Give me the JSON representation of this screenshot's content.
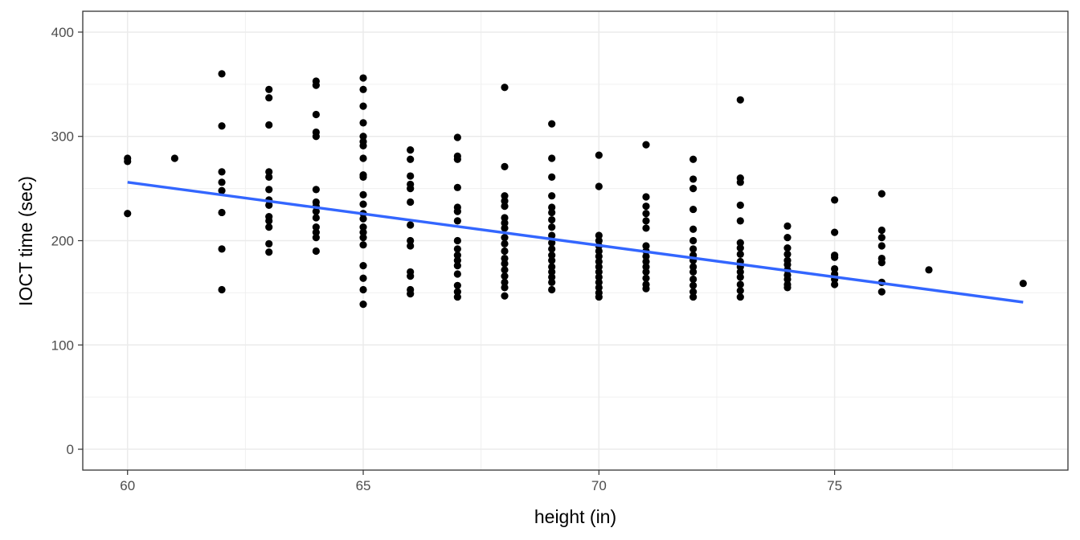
{
  "chart_data": {
    "type": "scatter",
    "title": "",
    "xlabel": "height (in)",
    "ylabel": "IOCT time (sec)",
    "xlim": [
      59.05,
      79.95
    ],
    "ylim": [
      -20,
      420
    ],
    "x_ticks": [
      60,
      65,
      70,
      75
    ],
    "x_tick_labels": [
      "60",
      "65",
      "70",
      "75"
    ],
    "y_ticks": [
      0,
      100,
      200,
      300,
      400
    ],
    "y_tick_labels": [
      "0",
      "100",
      "200",
      "300",
      "400"
    ],
    "grid": true,
    "legend": "none",
    "point_color": "#000000",
    "line_color": "#3366FF",
    "points": [
      [
        60,
        279
      ],
      [
        60,
        276
      ],
      [
        60,
        226
      ],
      [
        61,
        279
      ],
      [
        62,
        360
      ],
      [
        62,
        310
      ],
      [
        62,
        266
      ],
      [
        62,
        256
      ],
      [
        62,
        248
      ],
      [
        62,
        227
      ],
      [
        62,
        192
      ],
      [
        62,
        153
      ],
      [
        63,
        345
      ],
      [
        63,
        337
      ],
      [
        63,
        311
      ],
      [
        63,
        266
      ],
      [
        63,
        261
      ],
      [
        63,
        249
      ],
      [
        63,
        239
      ],
      [
        63,
        234
      ],
      [
        63,
        223
      ],
      [
        63,
        219
      ],
      [
        63,
        213
      ],
      [
        63,
        197
      ],
      [
        63,
        189
      ],
      [
        64,
        353
      ],
      [
        64,
        349
      ],
      [
        64,
        321
      ],
      [
        64,
        304
      ],
      [
        64,
        300
      ],
      [
        64,
        249
      ],
      [
        64,
        237
      ],
      [
        64,
        233
      ],
      [
        64,
        228
      ],
      [
        64,
        222
      ],
      [
        64,
        213
      ],
      [
        64,
        208
      ],
      [
        64,
        203
      ],
      [
        64,
        190
      ],
      [
        65,
        356
      ],
      [
        65,
        345
      ],
      [
        65,
        329
      ],
      [
        65,
        313
      ],
      [
        65,
        300
      ],
      [
        65,
        295
      ],
      [
        65,
        291
      ],
      [
        65,
        279
      ],
      [
        65,
        263
      ],
      [
        65,
        261
      ],
      [
        65,
        244
      ],
      [
        65,
        235
      ],
      [
        65,
        226
      ],
      [
        65,
        221
      ],
      [
        65,
        213
      ],
      [
        65,
        208
      ],
      [
        65,
        203
      ],
      [
        65,
        196
      ],
      [
        65,
        176
      ],
      [
        65,
        164
      ],
      [
        65,
        153
      ],
      [
        65,
        139
      ],
      [
        66,
        287
      ],
      [
        66,
        278
      ],
      [
        66,
        262
      ],
      [
        66,
        254
      ],
      [
        66,
        250
      ],
      [
        66,
        237
      ],
      [
        66,
        215
      ],
      [
        66,
        200
      ],
      [
        66,
        195
      ],
      [
        66,
        170
      ],
      [
        66,
        166
      ],
      [
        66,
        153
      ],
      [
        66,
        149
      ],
      [
        67,
        299
      ],
      [
        67,
        281
      ],
      [
        67,
        278
      ],
      [
        67,
        251
      ],
      [
        67,
        232
      ],
      [
        67,
        228
      ],
      [
        67,
        219
      ],
      [
        67,
        200
      ],
      [
        67,
        192
      ],
      [
        67,
        186
      ],
      [
        67,
        181
      ],
      [
        67,
        176
      ],
      [
        67,
        168
      ],
      [
        67,
        157
      ],
      [
        67,
        151
      ],
      [
        67,
        146
      ],
      [
        68,
        347
      ],
      [
        68,
        271
      ],
      [
        68,
        243
      ],
      [
        68,
        238
      ],
      [
        68,
        233
      ],
      [
        68,
        222
      ],
      [
        68,
        217
      ],
      [
        68,
        212
      ],
      [
        68,
        203
      ],
      [
        68,
        197
      ],
      [
        68,
        190
      ],
      [
        68,
        183
      ],
      [
        68,
        178
      ],
      [
        68,
        172
      ],
      [
        68,
        166
      ],
      [
        68,
        160
      ],
      [
        68,
        155
      ],
      [
        68,
        147
      ],
      [
        69,
        312
      ],
      [
        69,
        279
      ],
      [
        69,
        261
      ],
      [
        69,
        243
      ],
      [
        69,
        232
      ],
      [
        69,
        227
      ],
      [
        69,
        220
      ],
      [
        69,
        213
      ],
      [
        69,
        205
      ],
      [
        69,
        198
      ],
      [
        69,
        192
      ],
      [
        69,
        186
      ],
      [
        69,
        181
      ],
      [
        69,
        175
      ],
      [
        69,
        170
      ],
      [
        69,
        165
      ],
      [
        69,
        160
      ],
      [
        69,
        153
      ],
      [
        70,
        282
      ],
      [
        70,
        252
      ],
      [
        70,
        205
      ],
      [
        70,
        200
      ],
      [
        70,
        195
      ],
      [
        70,
        190
      ],
      [
        70,
        185
      ],
      [
        70,
        180
      ],
      [
        70,
        175
      ],
      [
        70,
        170
      ],
      [
        70,
        165
      ],
      [
        70,
        160
      ],
      [
        70,
        155
      ],
      [
        70,
        150
      ],
      [
        70,
        146
      ],
      [
        71,
        292
      ],
      [
        71,
        242
      ],
      [
        71,
        233
      ],
      [
        71,
        226
      ],
      [
        71,
        219
      ],
      [
        71,
        212
      ],
      [
        71,
        195
      ],
      [
        71,
        190
      ],
      [
        71,
        185
      ],
      [
        71,
        180
      ],
      [
        71,
        175
      ],
      [
        71,
        170
      ],
      [
        71,
        164
      ],
      [
        71,
        158
      ],
      [
        71,
        154
      ],
      [
        72,
        278
      ],
      [
        72,
        259
      ],
      [
        72,
        250
      ],
      [
        72,
        230
      ],
      [
        72,
        211
      ],
      [
        72,
        200
      ],
      [
        72,
        192
      ],
      [
        72,
        186
      ],
      [
        72,
        181
      ],
      [
        72,
        175
      ],
      [
        72,
        170
      ],
      [
        72,
        163
      ],
      [
        72,
        157
      ],
      [
        72,
        151
      ],
      [
        72,
        146
      ],
      [
        73,
        335
      ],
      [
        73,
        260
      ],
      [
        73,
        256
      ],
      [
        73,
        234
      ],
      [
        73,
        219
      ],
      [
        73,
        198
      ],
      [
        73,
        193
      ],
      [
        73,
        187
      ],
      [
        73,
        180
      ],
      [
        73,
        175
      ],
      [
        73,
        170
      ],
      [
        73,
        165
      ],
      [
        73,
        158
      ],
      [
        73,
        152
      ],
      [
        73,
        146
      ],
      [
        74,
        214
      ],
      [
        74,
        203
      ],
      [
        74,
        193
      ],
      [
        74,
        187
      ],
      [
        74,
        181
      ],
      [
        74,
        177
      ],
      [
        74,
        172
      ],
      [
        74,
        167
      ],
      [
        74,
        163
      ],
      [
        74,
        158
      ],
      [
        74,
        155
      ],
      [
        75,
        239
      ],
      [
        75,
        208
      ],
      [
        75,
        186
      ],
      [
        75,
        184
      ],
      [
        75,
        173
      ],
      [
        75,
        168
      ],
      [
        75,
        163
      ],
      [
        75,
        158
      ],
      [
        76,
        245
      ],
      [
        76,
        210
      ],
      [
        76,
        203
      ],
      [
        76,
        195
      ],
      [
        76,
        183
      ],
      [
        76,
        179
      ],
      [
        76,
        160
      ],
      [
        76,
        151
      ],
      [
        77,
        172
      ],
      [
        79,
        159
      ]
    ],
    "fit_line": [
      [
        60,
        256
      ],
      [
        79,
        141
      ]
    ]
  }
}
